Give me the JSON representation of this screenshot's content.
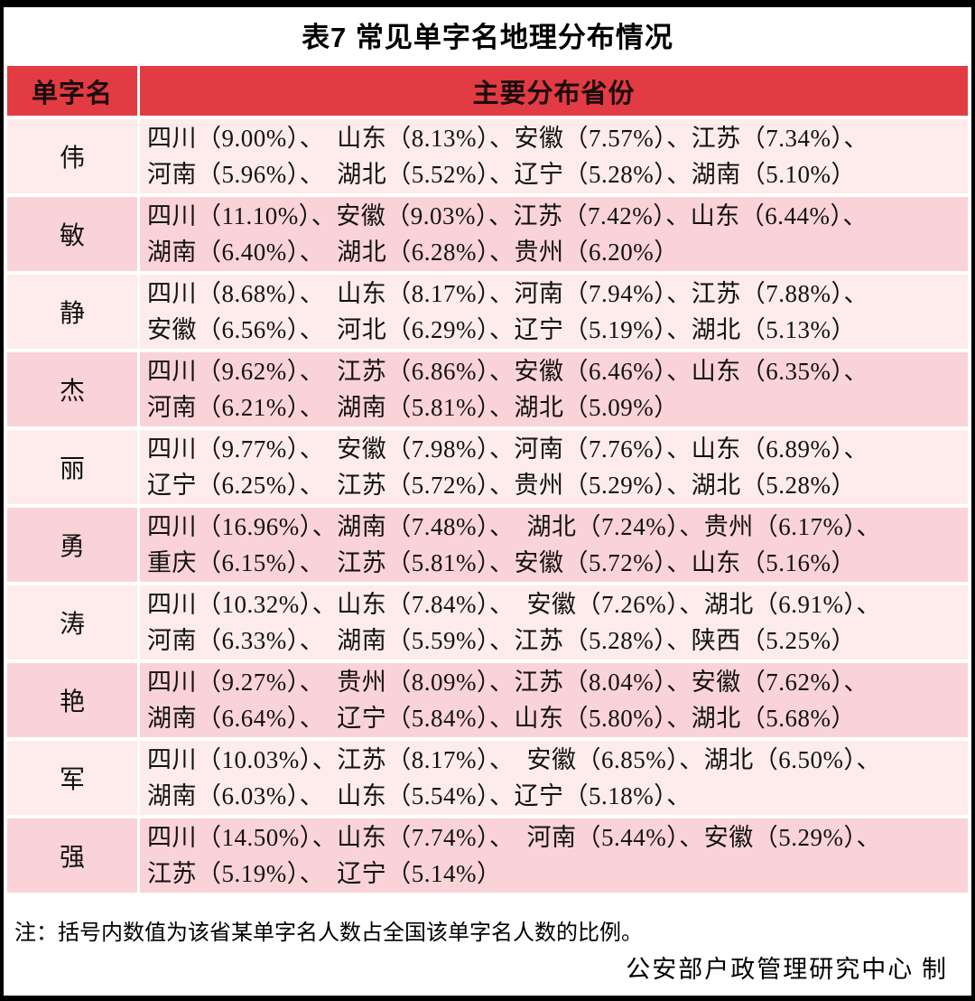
{
  "title": "表7  常见单字名地理分布情况",
  "colors": {
    "header_bg": "#e23b43",
    "row_light": "#fdeceb",
    "row_dark": "#f9d3d7"
  },
  "table": {
    "header": {
      "name_col": "单字名",
      "provinces_col": "主要分布省份"
    },
    "rows": [
      {
        "name": "伟",
        "line1": "四川（9.00%）、　山东（8.13%）、安徽（7.57%）、江苏（7.34%）、",
        "line2": "河南（5.96%）、　湖北（5.52%）、辽宁（5.28%）、湖南（5.10%）"
      },
      {
        "name": "敏",
        "line1": "四川（11.10%）、安徽（9.03%）、江苏（7.42%）、山东（6.44%）、",
        "line2": "湖南（6.40%）、　湖北（6.28%）、贵州（6.20%）"
      },
      {
        "name": "静",
        "line1": "四川（8.68%）、　山东（8.17%）、河南（7.94%）、江苏（7.88%）、",
        "line2": "安徽（6.56%）、　河北（6.29%）、辽宁（5.19%）、湖北（5.13%）"
      },
      {
        "name": "杰",
        "line1": "四川（9.62%）、　江苏（6.86%）、安徽（6.46%）、山东（6.35%）、",
        "line2": "河南（6.21%）、　湖南（5.81%）、湖北（5.09%）"
      },
      {
        "name": "丽",
        "line1": "四川（9.77%）、　安徽（7.98%）、河南（7.76%）、山东（6.89%）、",
        "line2": "辽宁（6.25%）、　江苏（5.72%）、贵州（5.29%）、湖北（5.28%）"
      },
      {
        "name": "勇",
        "line1": "四川（16.96%）、湖南（7.48%）、　湖北（7.24%）、贵州（6.17%）、",
        "line2": "重庆（6.15%）、　江苏（5.81%）、安徽（5.72%）、山东（5.16%）"
      },
      {
        "name": "涛",
        "line1": "四川（10.32%）、山东（7.84%）、　安徽（7.26%）、湖北（6.91%）、",
        "line2": "河南（6.33%）、　湖南（5.59%）、江苏（5.28%）、陕西（5.25%）"
      },
      {
        "name": "艳",
        "line1": "四川（9.27%）、　贵州（8.09%）、江苏（8.04%）、安徽（7.62%）、",
        "line2": "湖南（6.64%）、　辽宁（5.84%）、山东（5.80%）、湖北（5.68%）"
      },
      {
        "name": "军",
        "line1": "四川（10.03%）、江苏（8.17%）、　安徽（6.85%）、湖北（6.50%）、",
        "line2": "湖南（6.03%）、　山东（5.54%）、辽宁（5.18%）、"
      },
      {
        "name": "强",
        "line1": "四川（14.50%）、山东（7.74%）、　河南（5.44%）、安徽（5.29%）、",
        "line2": "江苏（5.19%）、　辽宁（5.14%）"
      }
    ]
  },
  "note": "注：括号内数值为该省某单字名人数占全国该单字名人数的比例。",
  "attribution": "公安部户政管理研究中心 制"
}
